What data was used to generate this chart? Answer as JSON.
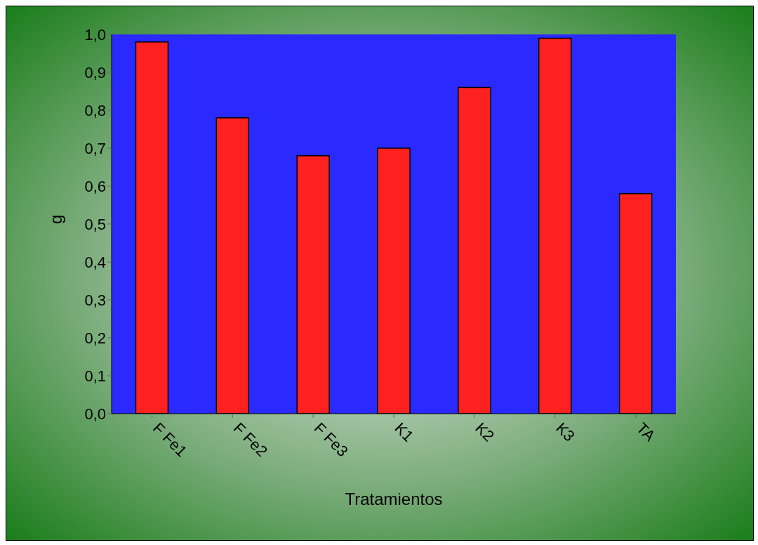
{
  "chart_data": {
    "type": "bar",
    "xlabel": "Tratamientos",
    "ylabel": "g",
    "categories": [
      "F Fe1",
      "F Fe2",
      "F Fe3",
      "K1",
      "K2",
      "K3",
      "TA"
    ],
    "values": [
      0.98,
      0.78,
      0.68,
      0.7,
      0.86,
      0.99,
      0.58
    ],
    "color": "#ff2020",
    "ylim": [
      0,
      1
    ],
    "yticks": [
      {
        "value": 0,
        "label": "0,0"
      },
      {
        "value": 0.1,
        "label": "0,1"
      },
      {
        "value": 0.2,
        "label": "0,2"
      },
      {
        "value": 0.3,
        "label": "0,3"
      },
      {
        "value": 0.4,
        "label": "0,4"
      },
      {
        "value": 0.5,
        "label": "0,5"
      },
      {
        "value": 0.6,
        "label": "0,6"
      },
      {
        "value": 0.7,
        "label": "0,7"
      },
      {
        "value": 0.8,
        "label": "0,8"
      },
      {
        "value": 0.9,
        "label": "0,9"
      },
      {
        "value": 1,
        "label": "1,0"
      }
    ]
  }
}
